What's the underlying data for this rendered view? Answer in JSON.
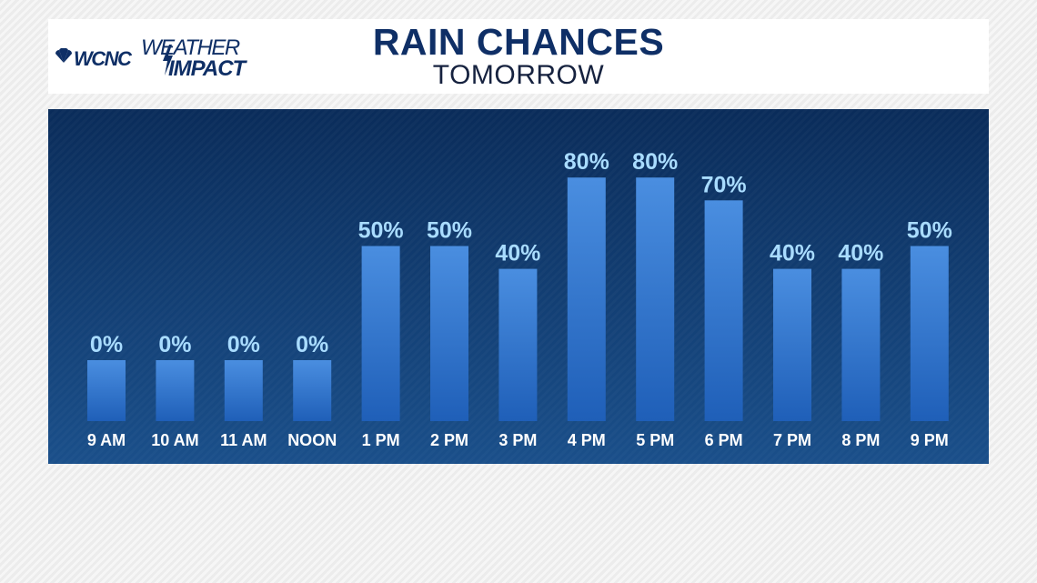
{
  "logo": {
    "station": "WCNC",
    "line1": "WEATHER",
    "line2": "IMPACT"
  },
  "header": {
    "title": "RAIN CHANCES",
    "subtitle": "TOMORROW"
  },
  "colors": {
    "navy": "#0f2f66",
    "bar_top": "#4a8ee0",
    "bar_bottom": "#1f5fb8",
    "value_label": "#a9dcff",
    "tick_label": "#ffffff"
  },
  "chart_data": {
    "type": "bar",
    "title": "RAIN CHANCES",
    "subtitle": "TOMORROW",
    "categories": [
      "9 AM",
      "10 AM",
      "11 AM",
      "NOON",
      "1 PM",
      "2 PM",
      "3 PM",
      "4 PM",
      "5 PM",
      "6 PM",
      "7 PM",
      "8 PM",
      "9 PM"
    ],
    "values": [
      0,
      0,
      0,
      0,
      50,
      50,
      40,
      80,
      80,
      70,
      40,
      40,
      50
    ],
    "value_labels": [
      "0%",
      "0%",
      "0%",
      "0%",
      "50%",
      "50%",
      "40%",
      "80%",
      "80%",
      "70%",
      "40%",
      "40%",
      "50%"
    ],
    "ylim": [
      0,
      100
    ],
    "grid": false,
    "xlabel": "",
    "ylabel": ""
  }
}
